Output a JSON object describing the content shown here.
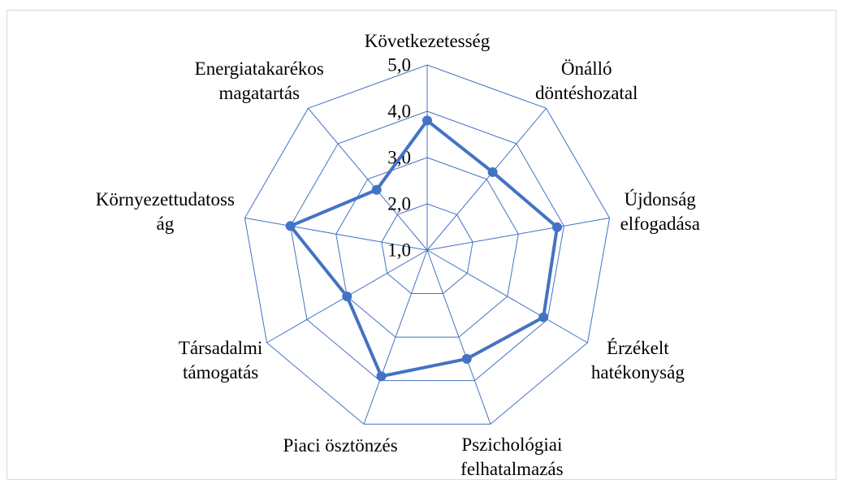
{
  "chart_data": {
    "type": "radar",
    "categories": [
      "Következetesség",
      "Önálló\ndöntéshozatal",
      "Újdonság\nelfogadása",
      "Érzékelt\nhatékonyság",
      "Pszichológiai\nfelhatalmazás",
      "Piaci ösztönzés",
      "Társadalmi\ntámogatás",
      "Környezettudatoss\nág",
      "Energiatakarékos\nmagatartás"
    ],
    "values": [
      3.8,
      3.2,
      3.85,
      3.9,
      3.5,
      3.9,
      3.0,
      4.0,
      2.7
    ],
    "color": "#4472c4",
    "ylim": [
      1,
      5
    ],
    "yticks": [
      {
        "value": 1,
        "label": "1,0"
      },
      {
        "value": 2,
        "label": "2,0"
      },
      {
        "value": 3,
        "label": "3,0"
      },
      {
        "value": 4,
        "label": "4,0"
      },
      {
        "value": 5,
        "label": "5,0"
      }
    ],
    "grid": true
  }
}
